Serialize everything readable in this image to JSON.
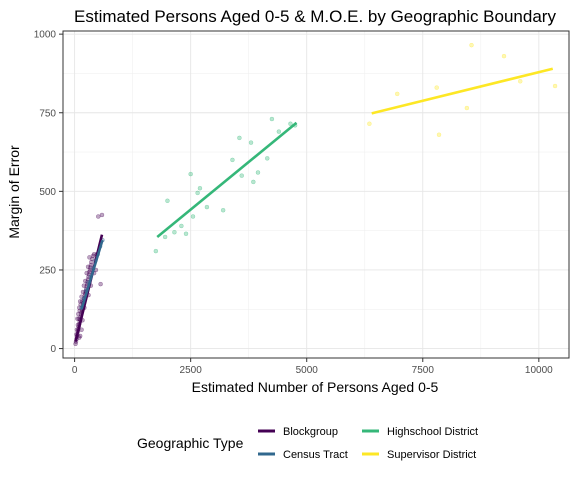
{
  "chart_data": {
    "type": "scatter",
    "title": "Estimated Persons Aged 0-5 & M.O.E. by Geographic Boundary",
    "xlabel": "Estimated Number of Persons Aged 0-5",
    "ylabel": "Margin of Error",
    "xlim": [
      -250,
      10650
    ],
    "ylim": [
      -30,
      1010
    ],
    "x_ticks": [
      0,
      2500,
      5000,
      7500,
      10000
    ],
    "x_tick_labels": [
      "0",
      "2500",
      "5000",
      "7500",
      "10000"
    ],
    "y_ticks": [
      0,
      250,
      500,
      750,
      1000
    ],
    "y_tick_labels": [
      "0",
      "250",
      "500",
      "750",
      "1000"
    ],
    "grid": true,
    "legend": {
      "title": "Geographic Type",
      "position": "bottom",
      "entries": [
        "Blockgroup",
        "Census Tract",
        "Highschool District",
        "Supervisor District"
      ]
    },
    "series": [
      {
        "name": "Blockgroup",
        "color": "#440154",
        "points": [
          [
            20,
            15
          ],
          [
            30,
            22
          ],
          [
            40,
            30
          ],
          [
            50,
            38
          ],
          [
            60,
            45
          ],
          [
            70,
            55
          ],
          [
            80,
            62
          ],
          [
            90,
            70
          ],
          [
            100,
            78
          ],
          [
            110,
            85
          ],
          [
            120,
            92
          ],
          [
            130,
            100
          ],
          [
            140,
            108
          ],
          [
            150,
            115
          ],
          [
            160,
            122
          ],
          [
            170,
            130
          ],
          [
            180,
            138
          ],
          [
            190,
            145
          ],
          [
            200,
            152
          ],
          [
            210,
            160
          ],
          [
            220,
            168
          ],
          [
            230,
            175
          ],
          [
            240,
            182
          ],
          [
            250,
            190
          ],
          [
            260,
            198
          ],
          [
            270,
            205
          ],
          [
            280,
            212
          ],
          [
            290,
            220
          ],
          [
            300,
            228
          ],
          [
            310,
            236
          ],
          [
            320,
            244
          ],
          [
            330,
            250
          ],
          [
            340,
            258
          ],
          [
            350,
            265
          ],
          [
            360,
            275
          ],
          [
            380,
            285
          ],
          [
            400,
            295
          ],
          [
            420,
            300
          ],
          [
            60,
            95
          ],
          [
            80,
            110
          ],
          [
            100,
            130
          ],
          [
            120,
            150
          ],
          [
            150,
            165
          ],
          [
            180,
            180
          ],
          [
            200,
            200
          ],
          [
            230,
            215
          ],
          [
            260,
            240
          ],
          [
            290,
            260
          ],
          [
            50,
            60
          ],
          [
            70,
            75
          ],
          [
            90,
            95
          ],
          [
            110,
            120
          ],
          [
            130,
            140
          ],
          [
            160,
            150
          ],
          [
            40,
            45
          ],
          [
            150,
            60
          ],
          [
            120,
            40
          ],
          [
            100,
            35
          ],
          [
            300,
            170
          ],
          [
            350,
            200
          ],
          [
            420,
            240
          ],
          [
            460,
            250
          ],
          [
            480,
            300
          ],
          [
            510,
            420
          ],
          [
            590,
            425
          ],
          [
            320,
            290
          ],
          [
            560,
            205
          ],
          [
            250,
            180
          ],
          [
            210,
            130
          ],
          [
            170,
            90
          ]
        ],
        "fit": [
          [
            20,
            22
          ],
          [
            590,
            362
          ]
        ]
      },
      {
        "name": "Census Tract",
        "color": "#31688e",
        "points": [
          [
            150,
            130
          ],
          [
            200,
            160
          ],
          [
            250,
            185
          ],
          [
            300,
            210
          ],
          [
            350,
            230
          ],
          [
            400,
            255
          ],
          [
            450,
            280
          ],
          [
            500,
            300
          ],
          [
            550,
            325
          ],
          [
            600,
            345
          ]
        ],
        "fit": [
          [
            150,
            125
          ],
          [
            600,
            345
          ]
        ]
      },
      {
        "name": "Highschool District",
        "color": "#35b779",
        "points": [
          [
            1750,
            310
          ],
          [
            1950,
            355
          ],
          [
            2000,
            470
          ],
          [
            2150,
            370
          ],
          [
            2300,
            390
          ],
          [
            2400,
            365
          ],
          [
            2550,
            420
          ],
          [
            2500,
            555
          ],
          [
            2650,
            495
          ],
          [
            2700,
            510
          ],
          [
            2850,
            450
          ],
          [
            3200,
            440
          ],
          [
            3400,
            600
          ],
          [
            3550,
            670
          ],
          [
            3600,
            550
          ],
          [
            3800,
            655
          ],
          [
            3850,
            530
          ],
          [
            3950,
            560
          ],
          [
            4150,
            605
          ],
          [
            4250,
            730
          ],
          [
            4400,
            690
          ],
          [
            4650,
            715
          ],
          [
            4750,
            710
          ]
        ],
        "fit": [
          [
            1780,
            355
          ],
          [
            4780,
            718
          ]
        ]
      },
      {
        "name": "Supervisor District",
        "color": "#fde725",
        "points": [
          [
            6350,
            715
          ],
          [
            6950,
            810
          ],
          [
            7800,
            830
          ],
          [
            7850,
            680
          ],
          [
            8450,
            765
          ],
          [
            8550,
            965
          ],
          [
            9250,
            930
          ],
          [
            9600,
            850
          ],
          [
            10350,
            835
          ]
        ],
        "fit": [
          [
            6400,
            748
          ],
          [
            10300,
            890
          ]
        ]
      }
    ]
  }
}
